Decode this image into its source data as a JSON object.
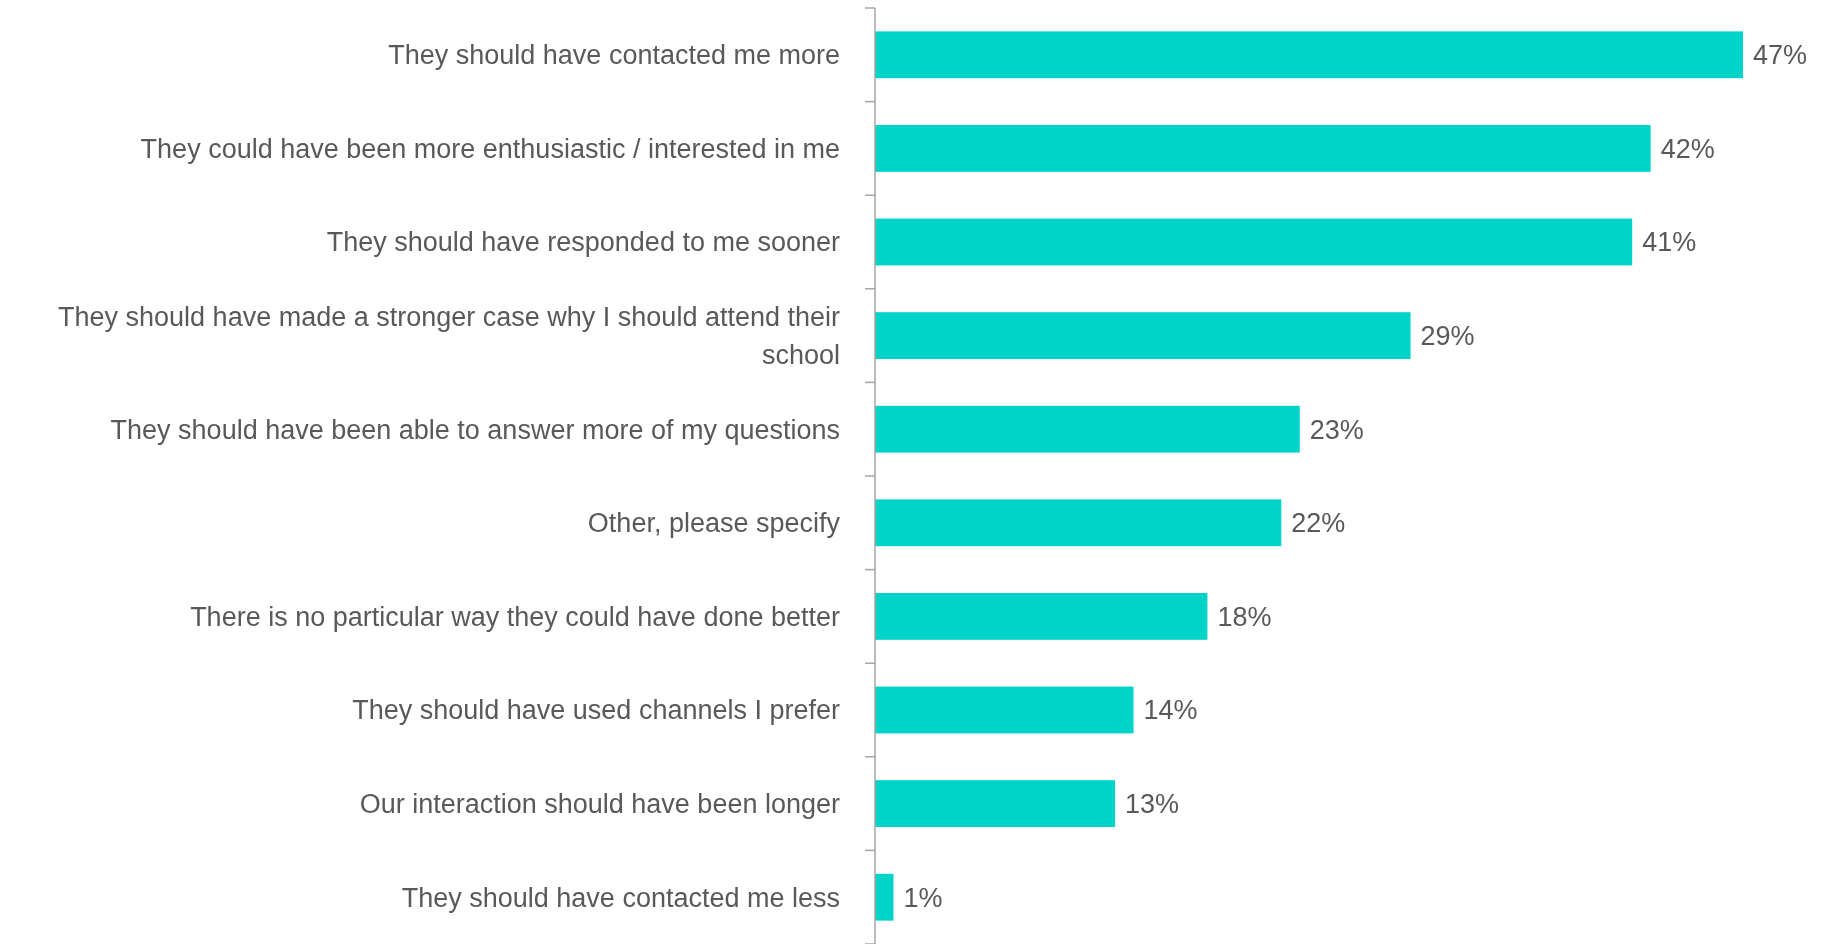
{
  "chart_data": {
    "type": "bar",
    "orientation": "horizontal",
    "categories": [
      "They should have contacted me more",
      "They could have been more enthusiastic / interested in me",
      "They should have responded to me sooner",
      "They should have made a stronger case why I should attend their school",
      "They should have been able to answer more of my questions",
      "Other, please specify",
      "There is no particular way they could have done better",
      "They should have used channels I prefer",
      "Our interaction should have been longer",
      "They should have contacted me less"
    ],
    "values": [
      47,
      42,
      41,
      29,
      23,
      22,
      18,
      14,
      13,
      1
    ],
    "value_labels": [
      "47%",
      "42%",
      "41%",
      "29%",
      "23%",
      "22%",
      "18%",
      "14%",
      "13%",
      "1%"
    ],
    "color": "#00d3c8"
  }
}
